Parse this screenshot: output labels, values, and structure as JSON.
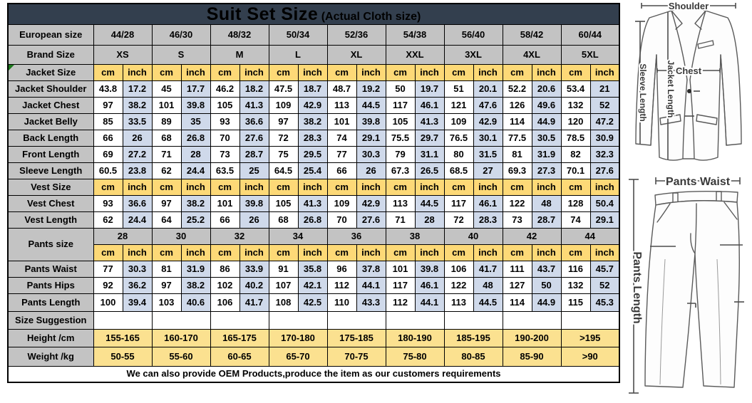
{
  "title": {
    "main": "Suit Set Size",
    "sub": "(Actual Cloth size)"
  },
  "footer": "We can also provide OEM Products,produce the item as our customers requirements",
  "colors": {
    "banner": "#333f4e",
    "label_gray": "#c3c3c3",
    "unit_yellow": "#fdd977",
    "inch_blue": "#cfd9ea",
    "range_yellow": "#fbe190",
    "title_text": "#ffffff"
  },
  "table": {
    "unit_cm": "cm",
    "unit_inch": "inch",
    "rows": [
      {
        "kind": "banner"
      },
      {
        "kind": "sizes",
        "label": "European size",
        "section": true,
        "tb": true,
        "values": [
          "44/28",
          "46/30",
          "48/32",
          "50/34",
          "52/36",
          "54/38",
          "56/40",
          "58/42",
          "60/44"
        ]
      },
      {
        "kind": "sizes",
        "label": "Brand Size",
        "section": true,
        "values": [
          "XS",
          "S",
          "M",
          "L",
          "XL",
          "XXL",
          "3XL",
          "4XL",
          "5XL"
        ]
      },
      {
        "kind": "units",
        "label": "Jacket Size",
        "section": true,
        "marker": true,
        "tb": true
      },
      {
        "kind": "data",
        "label": "Jacket Shoulder",
        "values": [
          "43.8",
          "17.2",
          "45",
          "17.7",
          "46.2",
          "18.2",
          "47.5",
          "18.7",
          "48.7",
          "19.2",
          "50",
          "19.7",
          "51",
          "20.1",
          "52.2",
          "20.6",
          "53.4",
          "21"
        ]
      },
      {
        "kind": "data",
        "label": "Jacket Chest",
        "values": [
          "97",
          "38.2",
          "101",
          "39.8",
          "105",
          "41.3",
          "109",
          "42.9",
          "113",
          "44.5",
          "117",
          "46.1",
          "121",
          "47.6",
          "126",
          "49.6",
          "132",
          "52"
        ]
      },
      {
        "kind": "data",
        "label": "Jacket Belly",
        "values": [
          "85",
          "33.5",
          "89",
          "35",
          "93",
          "36.6",
          "97",
          "38.2",
          "101",
          "39.8",
          "105",
          "41.3",
          "109",
          "42.9",
          "114",
          "44.9",
          "120",
          "47.2"
        ]
      },
      {
        "kind": "data",
        "label": "Back Length",
        "values": [
          "66",
          "26",
          "68",
          "26.8",
          "70",
          "27.6",
          "72",
          "28.3",
          "74",
          "29.1",
          "75.5",
          "29.7",
          "76.5",
          "30.1",
          "77.5",
          "30.5",
          "78.5",
          "30.9"
        ]
      },
      {
        "kind": "data",
        "label": "Front Length",
        "values": [
          "69",
          "27.2",
          "71",
          "28",
          "73",
          "28.7",
          "75",
          "29.5",
          "77",
          "30.3",
          "79",
          "31.1",
          "80",
          "31.5",
          "81",
          "31.9",
          "82",
          "32.3"
        ]
      },
      {
        "kind": "data",
        "label": "Sleeve Length",
        "values": [
          "60.5",
          "23.8",
          "62",
          "24.4",
          "63.5",
          "25",
          "64.5",
          "25.4",
          "66",
          "26",
          "67.3",
          "26.5",
          "68.5",
          "27",
          "69.3",
          "27.3",
          "70.1",
          "27.6"
        ]
      },
      {
        "kind": "units",
        "label": "Vest Size",
        "section": true,
        "tb": true
      },
      {
        "kind": "data",
        "label": "Vest Chest",
        "values": [
          "93",
          "36.6",
          "97",
          "38.2",
          "101",
          "39.8",
          "105",
          "41.3",
          "109",
          "42.9",
          "113",
          "44.5",
          "117",
          "46.1",
          "122",
          "48",
          "128",
          "50.4"
        ]
      },
      {
        "kind": "data",
        "label": "Vest Length",
        "values": [
          "62",
          "24.4",
          "64",
          "25.2",
          "66",
          "26",
          "68",
          "26.8",
          "70",
          "27.6",
          "71",
          "28",
          "72",
          "28.3",
          "73",
          "28.7",
          "74",
          "29.1"
        ]
      },
      {
        "kind": "sizes",
        "label": "Pants size",
        "section": true,
        "rowspan": 2,
        "tb": true,
        "values": [
          "28",
          "30",
          "32",
          "34",
          "36",
          "38",
          "40",
          "42",
          "44"
        ]
      },
      {
        "kind": "units"
      },
      {
        "kind": "data",
        "label": "Pants Waist",
        "values": [
          "77",
          "30.3",
          "81",
          "31.9",
          "86",
          "33.9",
          "91",
          "35.8",
          "96",
          "37.8",
          "101",
          "39.8",
          "106",
          "41.7",
          "111",
          "43.7",
          "116",
          "45.7"
        ]
      },
      {
        "kind": "data",
        "label": "Pants Hips",
        "values": [
          "92",
          "36.2",
          "97",
          "38.2",
          "102",
          "40.2",
          "107",
          "42.1",
          "112",
          "44.1",
          "117",
          "46.1",
          "122",
          "48",
          "127",
          "50",
          "132",
          "52"
        ]
      },
      {
        "kind": "data",
        "label": "Pants Length",
        "values": [
          "100",
          "39.4",
          "103",
          "40.6",
          "106",
          "41.7",
          "108",
          "42.5",
          "110",
          "43.3",
          "112",
          "44.1",
          "113",
          "44.5",
          "114",
          "44.9",
          "115",
          "45.3"
        ]
      },
      {
        "kind": "empty",
        "label": "Size Suggestion",
        "section": true,
        "tb": true,
        "values": [
          "",
          "",
          "",
          "",
          "",
          "",
          "",
          "",
          ""
        ]
      },
      {
        "kind": "ranges",
        "label": "Height /cm",
        "values": [
          "155-165",
          "160-170",
          "165-175",
          "170-180",
          "175-185",
          "180-190",
          "185-195",
          "190-200",
          ">195"
        ]
      },
      {
        "kind": "ranges",
        "label": "Weight /kg",
        "values": [
          "50-55",
          "55-60",
          "60-65",
          "65-70",
          "70-75",
          "75-80",
          "80-85",
          "85-90",
          ">90"
        ]
      },
      {
        "kind": "footer"
      }
    ]
  },
  "diagram": {
    "shoulder": "Shoulder",
    "chest": "Chest",
    "jacket_length": "Jacket Length",
    "sleeve_length": "Sleeve Length",
    "pants_waist": "Pants Waist",
    "pants_length": "Pants Length"
  }
}
